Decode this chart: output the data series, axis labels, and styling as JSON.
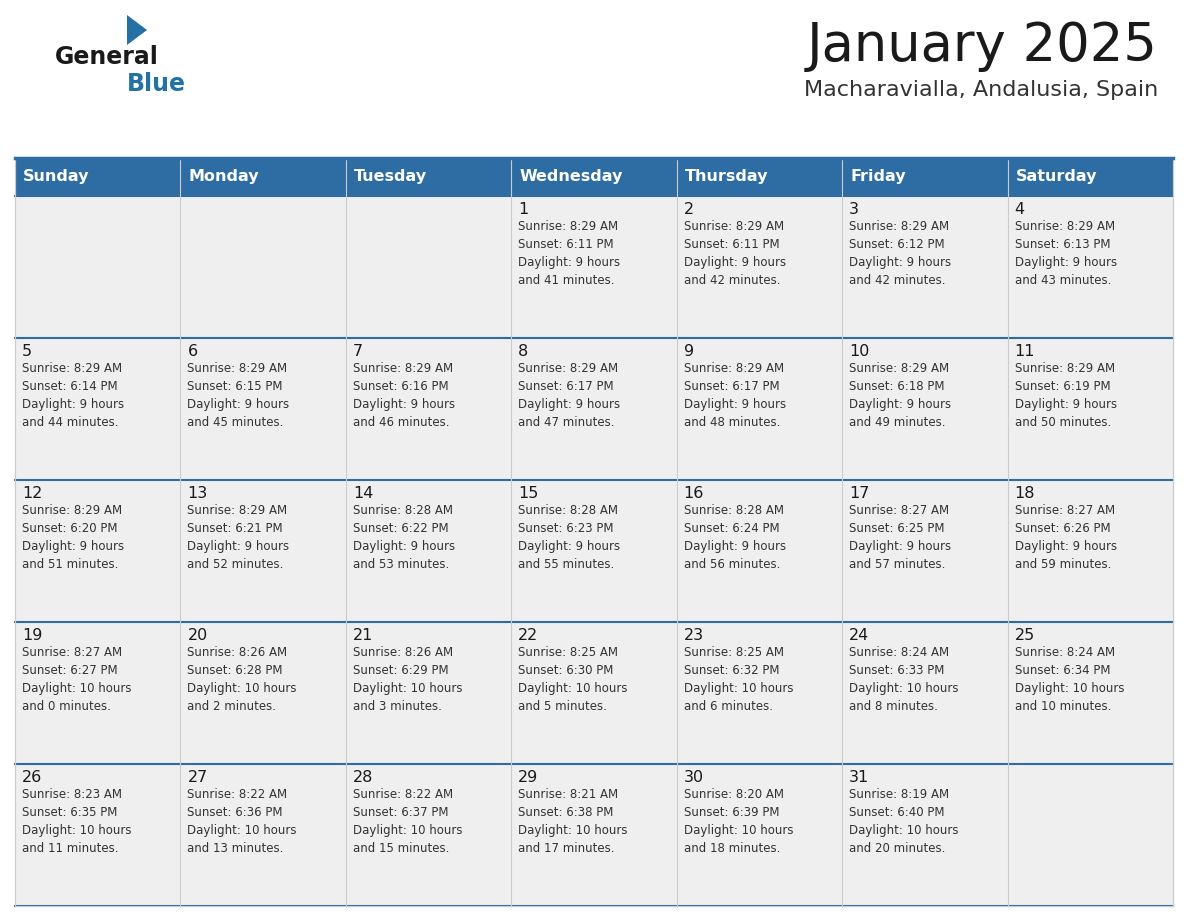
{
  "title": "January 2025",
  "subtitle": "Macharavialla, Andalusia, Spain",
  "header_bg": "#2E6DA4",
  "header_text": "#FFFFFF",
  "cell_bg": "#EFEFEF",
  "cell_bg_white": "#FFFFFF",
  "title_color": "#1a1a1a",
  "subtitle_color": "#333333",
  "separator_color": "#2E6DA4",
  "grid_color": "#cccccc",
  "day_names": [
    "Sunday",
    "Monday",
    "Tuesday",
    "Wednesday",
    "Thursday",
    "Friday",
    "Saturday"
  ],
  "weeks": [
    [
      {
        "day": "",
        "info": ""
      },
      {
        "day": "",
        "info": ""
      },
      {
        "day": "",
        "info": ""
      },
      {
        "day": "1",
        "info": "Sunrise: 8:29 AM\nSunset: 6:11 PM\nDaylight: 9 hours\nand 41 minutes."
      },
      {
        "day": "2",
        "info": "Sunrise: 8:29 AM\nSunset: 6:11 PM\nDaylight: 9 hours\nand 42 minutes."
      },
      {
        "day": "3",
        "info": "Sunrise: 8:29 AM\nSunset: 6:12 PM\nDaylight: 9 hours\nand 42 minutes."
      },
      {
        "day": "4",
        "info": "Sunrise: 8:29 AM\nSunset: 6:13 PM\nDaylight: 9 hours\nand 43 minutes."
      }
    ],
    [
      {
        "day": "5",
        "info": "Sunrise: 8:29 AM\nSunset: 6:14 PM\nDaylight: 9 hours\nand 44 minutes."
      },
      {
        "day": "6",
        "info": "Sunrise: 8:29 AM\nSunset: 6:15 PM\nDaylight: 9 hours\nand 45 minutes."
      },
      {
        "day": "7",
        "info": "Sunrise: 8:29 AM\nSunset: 6:16 PM\nDaylight: 9 hours\nand 46 minutes."
      },
      {
        "day": "8",
        "info": "Sunrise: 8:29 AM\nSunset: 6:17 PM\nDaylight: 9 hours\nand 47 minutes."
      },
      {
        "day": "9",
        "info": "Sunrise: 8:29 AM\nSunset: 6:17 PM\nDaylight: 9 hours\nand 48 minutes."
      },
      {
        "day": "10",
        "info": "Sunrise: 8:29 AM\nSunset: 6:18 PM\nDaylight: 9 hours\nand 49 minutes."
      },
      {
        "day": "11",
        "info": "Sunrise: 8:29 AM\nSunset: 6:19 PM\nDaylight: 9 hours\nand 50 minutes."
      }
    ],
    [
      {
        "day": "12",
        "info": "Sunrise: 8:29 AM\nSunset: 6:20 PM\nDaylight: 9 hours\nand 51 minutes."
      },
      {
        "day": "13",
        "info": "Sunrise: 8:29 AM\nSunset: 6:21 PM\nDaylight: 9 hours\nand 52 minutes."
      },
      {
        "day": "14",
        "info": "Sunrise: 8:28 AM\nSunset: 6:22 PM\nDaylight: 9 hours\nand 53 minutes."
      },
      {
        "day": "15",
        "info": "Sunrise: 8:28 AM\nSunset: 6:23 PM\nDaylight: 9 hours\nand 55 minutes."
      },
      {
        "day": "16",
        "info": "Sunrise: 8:28 AM\nSunset: 6:24 PM\nDaylight: 9 hours\nand 56 minutes."
      },
      {
        "day": "17",
        "info": "Sunrise: 8:27 AM\nSunset: 6:25 PM\nDaylight: 9 hours\nand 57 minutes."
      },
      {
        "day": "18",
        "info": "Sunrise: 8:27 AM\nSunset: 6:26 PM\nDaylight: 9 hours\nand 59 minutes."
      }
    ],
    [
      {
        "day": "19",
        "info": "Sunrise: 8:27 AM\nSunset: 6:27 PM\nDaylight: 10 hours\nand 0 minutes."
      },
      {
        "day": "20",
        "info": "Sunrise: 8:26 AM\nSunset: 6:28 PM\nDaylight: 10 hours\nand 2 minutes."
      },
      {
        "day": "21",
        "info": "Sunrise: 8:26 AM\nSunset: 6:29 PM\nDaylight: 10 hours\nand 3 minutes."
      },
      {
        "day": "22",
        "info": "Sunrise: 8:25 AM\nSunset: 6:30 PM\nDaylight: 10 hours\nand 5 minutes."
      },
      {
        "day": "23",
        "info": "Sunrise: 8:25 AM\nSunset: 6:32 PM\nDaylight: 10 hours\nand 6 minutes."
      },
      {
        "day": "24",
        "info": "Sunrise: 8:24 AM\nSunset: 6:33 PM\nDaylight: 10 hours\nand 8 minutes."
      },
      {
        "day": "25",
        "info": "Sunrise: 8:24 AM\nSunset: 6:34 PM\nDaylight: 10 hours\nand 10 minutes."
      }
    ],
    [
      {
        "day": "26",
        "info": "Sunrise: 8:23 AM\nSunset: 6:35 PM\nDaylight: 10 hours\nand 11 minutes."
      },
      {
        "day": "27",
        "info": "Sunrise: 8:22 AM\nSunset: 6:36 PM\nDaylight: 10 hours\nand 13 minutes."
      },
      {
        "day": "28",
        "info": "Sunrise: 8:22 AM\nSunset: 6:37 PM\nDaylight: 10 hours\nand 15 minutes."
      },
      {
        "day": "29",
        "info": "Sunrise: 8:21 AM\nSunset: 6:38 PM\nDaylight: 10 hours\nand 17 minutes."
      },
      {
        "day": "30",
        "info": "Sunrise: 8:20 AM\nSunset: 6:39 PM\nDaylight: 10 hours\nand 18 minutes."
      },
      {
        "day": "31",
        "info": "Sunrise: 8:19 AM\nSunset: 6:40 PM\nDaylight: 10 hours\nand 20 minutes."
      },
      {
        "day": "",
        "info": ""
      }
    ]
  ]
}
